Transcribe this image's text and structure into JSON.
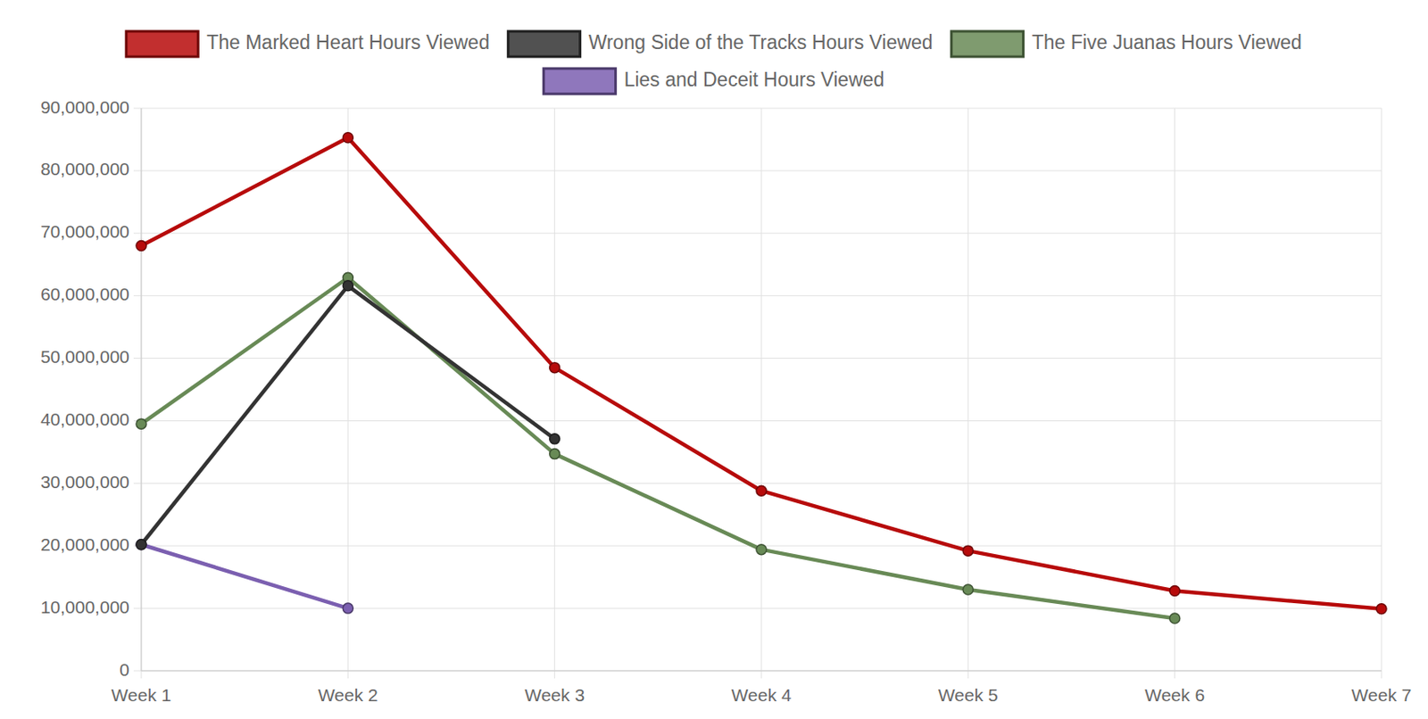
{
  "chart_data": {
    "type": "line",
    "categories": [
      "Week 1",
      "Week 2",
      "Week 3",
      "Week 4",
      "Week 5",
      "Week 6",
      "Week 7"
    ],
    "series": [
      {
        "name": "The Marked Heart Hours Viewed",
        "color": "#b70b0b",
        "values": [
          68000000,
          85300000,
          48500000,
          28800000,
          19200000,
          12800000,
          9900000
        ]
      },
      {
        "name": "Wrong Side of the Tracks Hours Viewed",
        "color": "#333333",
        "values": [
          20200000,
          61600000,
          37100000,
          null,
          null,
          null,
          null
        ]
      },
      {
        "name": "The Five Juanas Hours Viewed",
        "color": "#688a56",
        "values": [
          39500000,
          62900000,
          34700000,
          19400000,
          13000000,
          8400000,
          null
        ]
      },
      {
        "name": "Lies and Deceit Hours Viewed",
        "color": "#7b5fb0",
        "values": [
          20200000,
          10000000,
          null,
          null,
          null,
          null,
          null
        ]
      }
    ],
    "ylim": [
      0,
      90000000
    ],
    "yticks": [
      0,
      {
        "value": 10000000,
        "label": "10,000,000"
      },
      {
        "value": 20000000,
        "label": "20,000,000"
      },
      {
        "value": 30000000,
        "label": "30,000,000"
      },
      {
        "value": 40000000,
        "label": "40,000,000"
      },
      {
        "value": 50000000,
        "label": "50,000,000"
      },
      {
        "value": 60000000,
        "label": "60,000,000"
      },
      {
        "value": 70000000,
        "label": "70,000,000"
      },
      {
        "value": 80000000,
        "label": "80,000,000"
      },
      {
        "value": 90000000,
        "label": "90,000,000"
      }
    ],
    "grid": true,
    "legend": "top",
    "marker": "circle"
  }
}
